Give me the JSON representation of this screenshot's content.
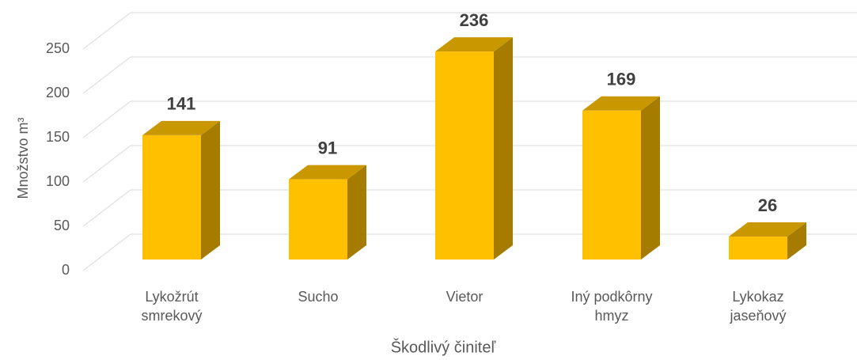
{
  "chart_data": {
    "type": "bar3d",
    "y_label": "Množstvo m³",
    "x_label": "Škodlivý činiteľ",
    "categories": [
      "Lykožrút smrekový",
      "Sucho",
      "Vietor",
      "Iný podkôrny hmyz",
      "Lykokaz jaseňový"
    ],
    "values": [
      141,
      91,
      236,
      169,
      26
    ],
    "color": "#ffc000",
    "ylim": [
      0,
      250
    ],
    "yticks": [
      0,
      50,
      100,
      150,
      200,
      250
    ],
    "grid": true
  }
}
